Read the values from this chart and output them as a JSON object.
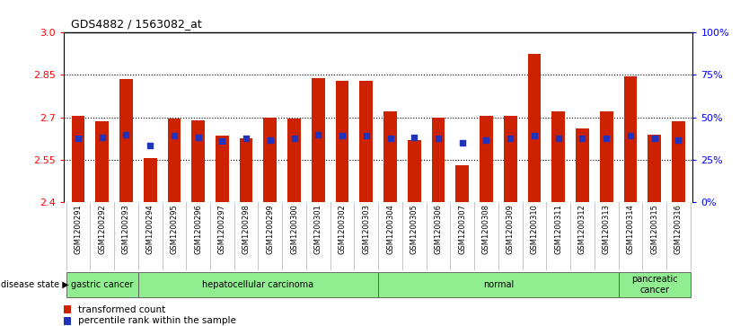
{
  "title": "GDS4882 / 1563082_at",
  "samples": [
    "GSM1200291",
    "GSM1200292",
    "GSM1200293",
    "GSM1200294",
    "GSM1200295",
    "GSM1200296",
    "GSM1200297",
    "GSM1200298",
    "GSM1200299",
    "GSM1200300",
    "GSM1200301",
    "GSM1200302",
    "GSM1200303",
    "GSM1200304",
    "GSM1200305",
    "GSM1200306",
    "GSM1200307",
    "GSM1200308",
    "GSM1200309",
    "GSM1200310",
    "GSM1200311",
    "GSM1200312",
    "GSM1200313",
    "GSM1200314",
    "GSM1200315",
    "GSM1200316"
  ],
  "bar_heights": [
    2.705,
    2.685,
    2.835,
    2.555,
    2.695,
    2.69,
    2.635,
    2.625,
    2.7,
    2.695,
    2.84,
    2.83,
    2.83,
    2.72,
    2.62,
    2.7,
    2.53,
    2.705,
    2.705,
    2.925,
    2.72,
    2.66,
    2.72,
    2.845,
    2.64,
    2.685
  ],
  "blue_dot_y": [
    2.625,
    2.63,
    2.64,
    2.6,
    2.635,
    2.63,
    2.615,
    2.625,
    2.62,
    2.625,
    2.64,
    2.635,
    2.635,
    2.625,
    2.63,
    2.625,
    2.61,
    2.62,
    2.625,
    2.635,
    2.625,
    2.625,
    2.625,
    2.635,
    2.625,
    2.62
  ],
  "y_min": 2.4,
  "y_max": 3.0,
  "y_ticks_left": [
    2.4,
    2.55,
    2.7,
    2.85,
    3.0
  ],
  "y_ticks_right": [
    0,
    25,
    50,
    75,
    100
  ],
  "bar_color": "#CC2200",
  "dot_color": "#2233BB",
  "disease_groups": [
    {
      "label": "gastric cancer",
      "start": 0,
      "end": 3
    },
    {
      "label": "hepatocellular carcinoma",
      "start": 3,
      "end": 13
    },
    {
      "label": "normal",
      "start": 13,
      "end": 23
    },
    {
      "label": "pancreatic\ncancer",
      "start": 23,
      "end": 26
    }
  ],
  "group_color": "#90EE90",
  "bg_color": "#ffffff",
  "plot_bg": "#ffffff",
  "tick_bg": "#D0D0D0",
  "border_color": "#808080"
}
